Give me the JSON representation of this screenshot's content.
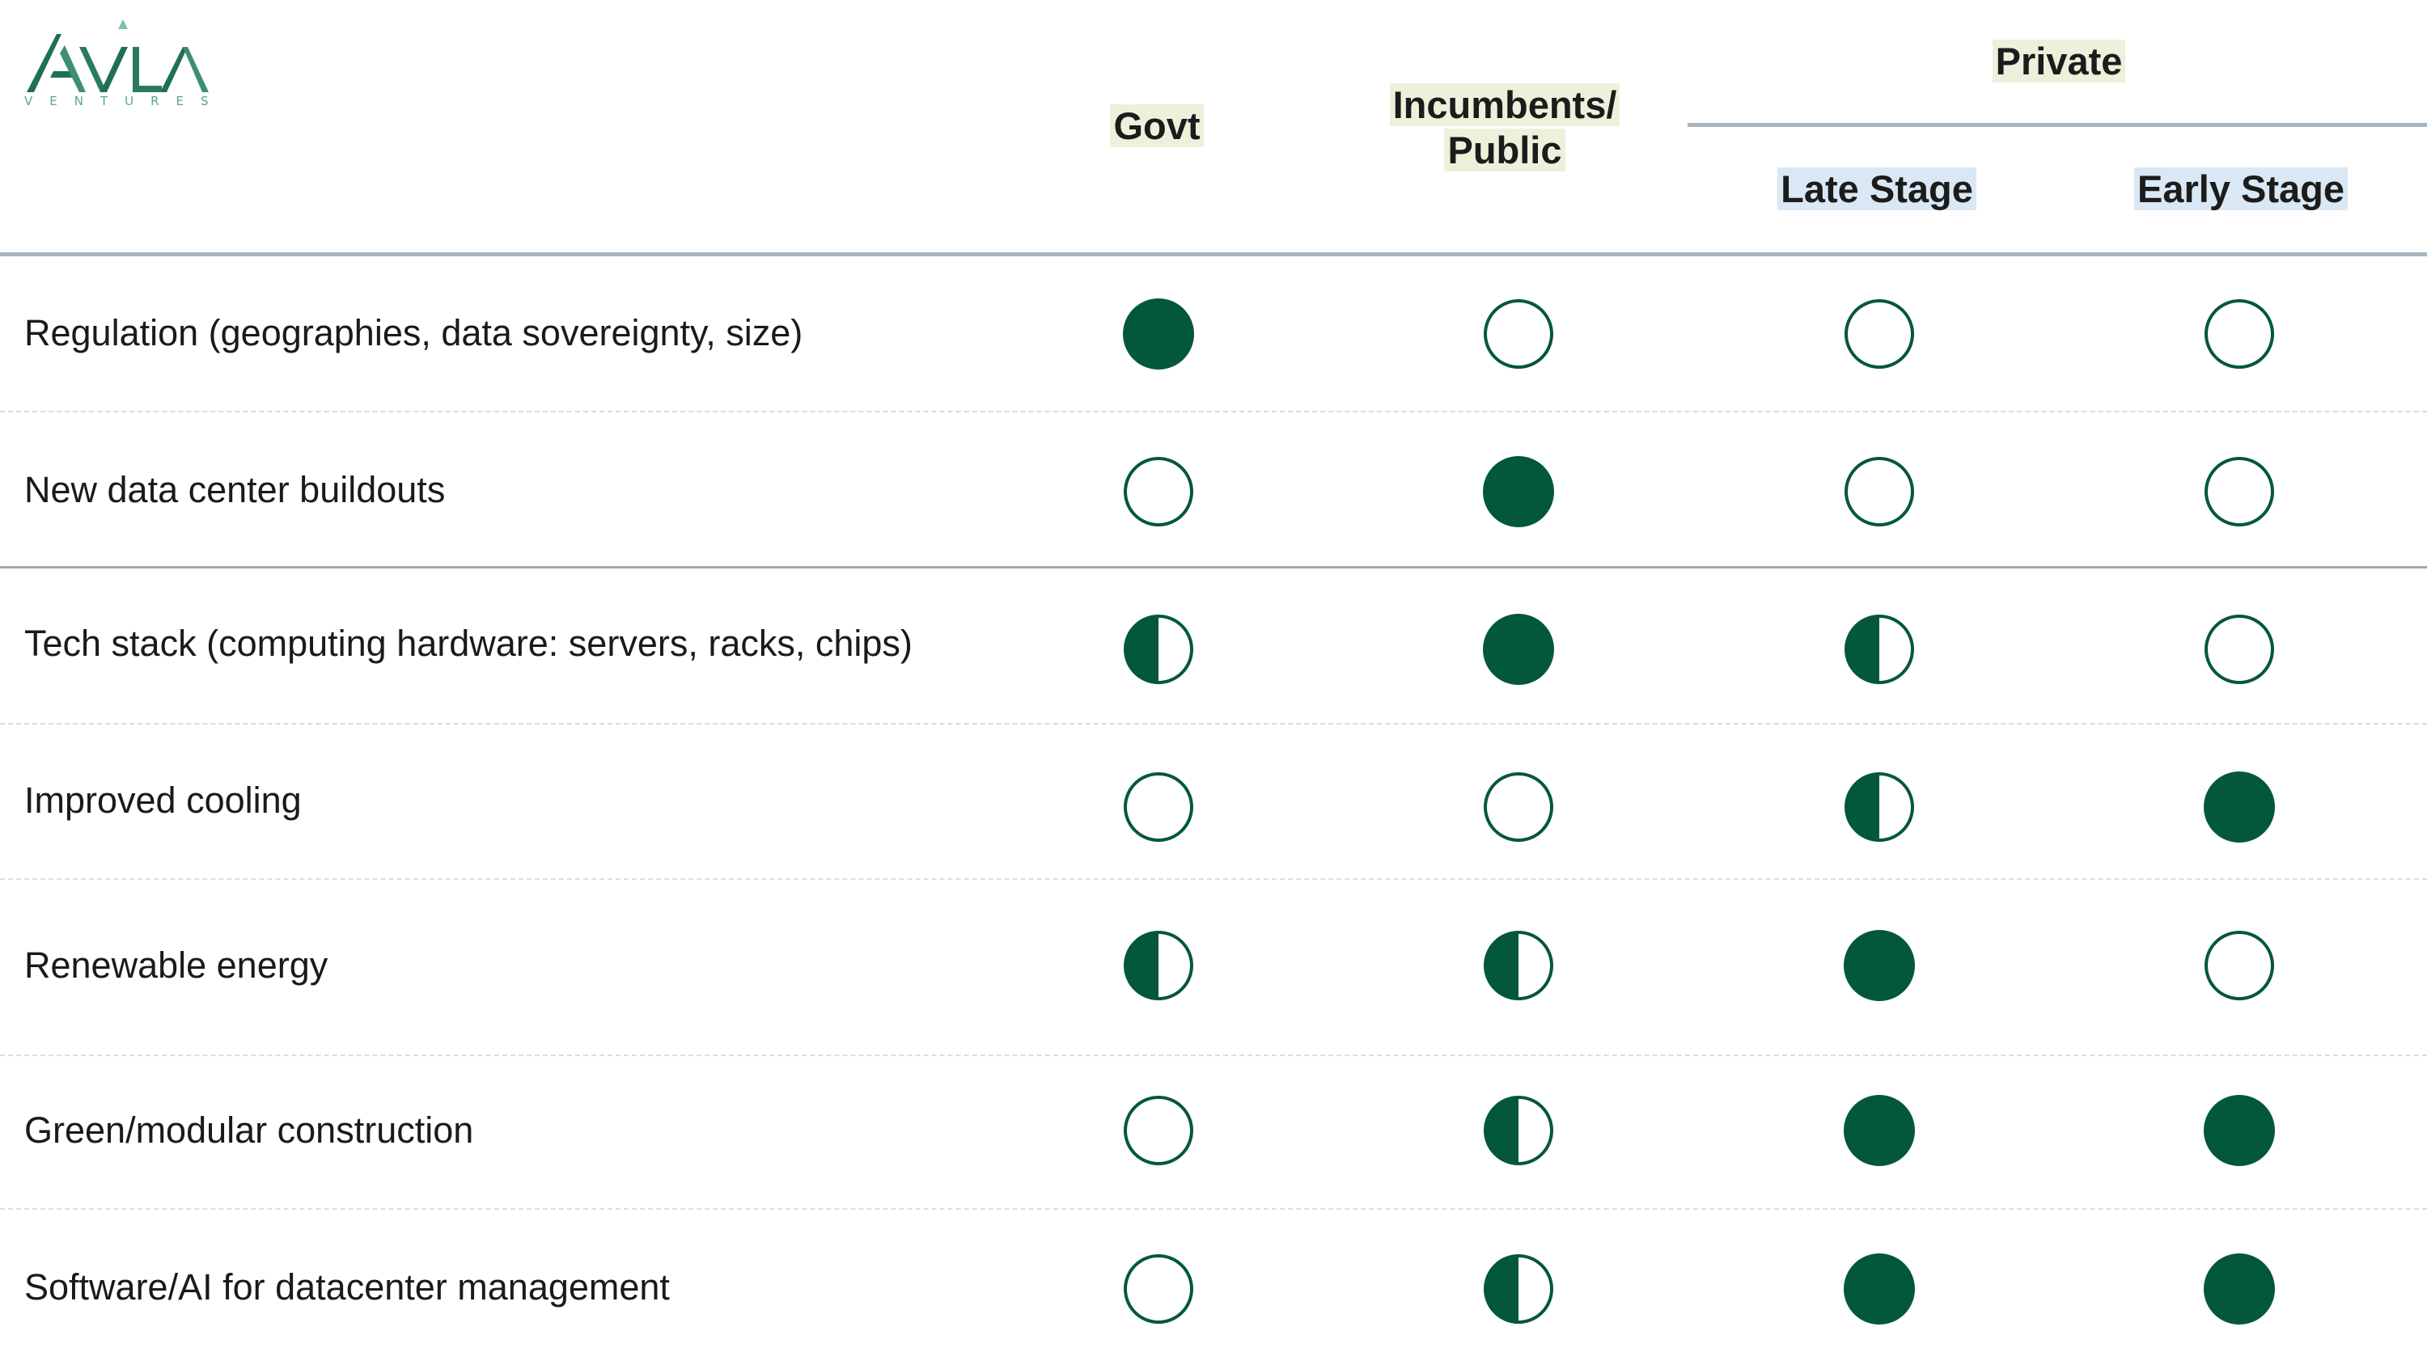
{
  "brand": {
    "name": "AVILA",
    "tagline": "VENTURES",
    "color": "#2e7d5f"
  },
  "colors": {
    "filled": "#03573d",
    "header_highlight_green": "#edf1dc",
    "header_highlight_blue": "#d9e8f4"
  },
  "header": {
    "govt": "Govt",
    "incumbents_line1": "Incumbents/",
    "incumbents_line2": "Public",
    "private": "Private",
    "late_stage": "Late Stage",
    "early_stage": "Early Stage"
  },
  "columns": [
    "Govt",
    "Incumbents/Public",
    "Late Stage",
    "Early Stage"
  ],
  "rows": [
    {
      "label": "Regulation (geographies, data sovereignty, size)",
      "levels": [
        "full",
        "empty",
        "empty",
        "empty"
      ]
    },
    {
      "label": "New data center buildouts",
      "levels": [
        "empty",
        "full",
        "empty",
        "empty"
      ]
    },
    {
      "label": "Tech stack (computing hardware: servers, racks, chips)",
      "levels": [
        "half",
        "full",
        "half",
        "empty"
      ]
    },
    {
      "label": "Improved cooling",
      "levels": [
        "empty",
        "empty",
        "half",
        "full"
      ]
    },
    {
      "label": "Renewable energy",
      "levels": [
        "half",
        "half",
        "full",
        "empty"
      ]
    },
    {
      "label": "Green/modular construction",
      "levels": [
        "empty",
        "half",
        "full",
        "full"
      ]
    },
    {
      "label": "Software/AI for datacenter management",
      "levels": [
        "empty",
        "half",
        "full",
        "full"
      ]
    }
  ]
}
